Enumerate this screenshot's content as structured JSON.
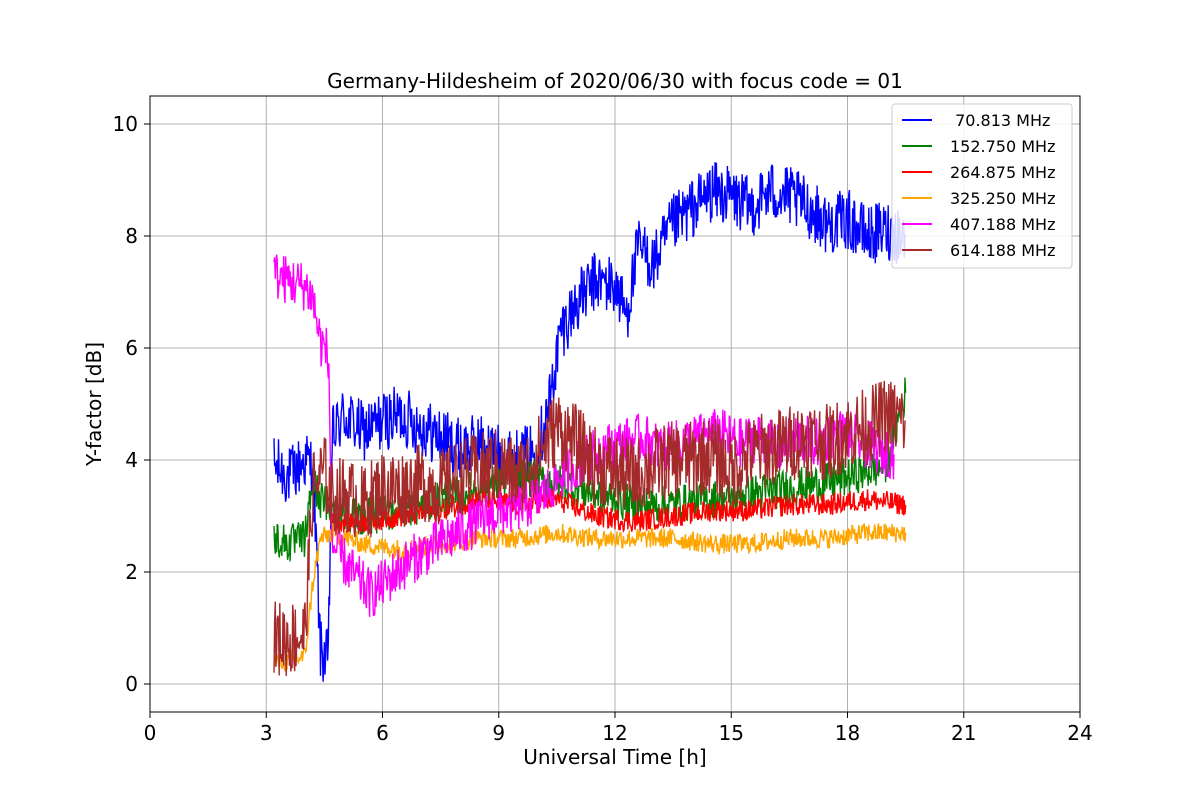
{
  "chart_data": {
    "type": "line",
    "title": "Germany-Hildesheim of 2020/06/30 with focus code = 01",
    "xlabel": "Universal Time [h]",
    "ylabel": "Y-factor [dB]",
    "xlim": [
      0,
      24
    ],
    "ylim": [
      -0.5,
      10.5
    ],
    "x_ticks": [
      "0",
      "3",
      "6",
      "9",
      "12",
      "15",
      "18",
      "21",
      "24"
    ],
    "y_ticks": [
      "0",
      "2",
      "4",
      "6",
      "8",
      "10"
    ],
    "grid": true,
    "legend_position": "top-right",
    "series": [
      {
        "name": " 70.813 MHz",
        "color": "#0000ff",
        "points": [
          [
            3.2,
            3.9
          ],
          [
            3.6,
            3.7
          ],
          [
            4.0,
            4.0
          ],
          [
            4.2,
            3.9
          ],
          [
            4.4,
            0.6
          ],
          [
            4.6,
            0.4
          ],
          [
            4.7,
            4.4
          ],
          [
            5.0,
            4.8
          ],
          [
            5.5,
            4.5
          ],
          [
            6.0,
            4.7
          ],
          [
            6.5,
            4.8
          ],
          [
            7.0,
            4.6
          ],
          [
            7.5,
            4.4
          ],
          [
            8.0,
            4.2
          ],
          [
            8.5,
            4.3
          ],
          [
            9.0,
            4.1
          ],
          [
            9.5,
            4.0
          ],
          [
            10.0,
            4.2
          ],
          [
            10.3,
            5.0
          ],
          [
            10.6,
            6.3
          ],
          [
            11.0,
            6.8
          ],
          [
            11.5,
            7.2
          ],
          [
            12.0,
            7.1
          ],
          [
            12.3,
            6.6
          ],
          [
            12.6,
            7.8
          ],
          [
            13.0,
            7.5
          ],
          [
            13.5,
            8.2
          ],
          [
            14.0,
            8.5
          ],
          [
            14.5,
            8.8
          ],
          [
            15.0,
            8.7
          ],
          [
            15.5,
            8.5
          ],
          [
            16.0,
            8.8
          ],
          [
            16.5,
            8.7
          ],
          [
            17.0,
            8.5
          ],
          [
            17.5,
            8.2
          ],
          [
            18.0,
            8.3
          ],
          [
            18.5,
            8.0
          ],
          [
            19.0,
            8.1
          ],
          [
            19.5,
            8.0
          ]
        ]
      },
      {
        "name": "152.750 MHz",
        "color": "#008000",
        "points": [
          [
            3.2,
            2.6
          ],
          [
            3.6,
            2.5
          ],
          [
            4.0,
            2.6
          ],
          [
            4.2,
            3.6
          ],
          [
            4.4,
            3.3
          ],
          [
            4.7,
            3.1
          ],
          [
            5.5,
            3.0
          ],
          [
            6.5,
            3.1
          ],
          [
            7.5,
            3.3
          ],
          [
            8.5,
            3.5
          ],
          [
            9.5,
            3.7
          ],
          [
            10.5,
            3.6
          ],
          [
            11.5,
            3.4
          ],
          [
            12.5,
            3.2
          ],
          [
            13.5,
            3.2
          ],
          [
            14.5,
            3.3
          ],
          [
            15.5,
            3.4
          ],
          [
            16.5,
            3.5
          ],
          [
            17.5,
            3.6
          ],
          [
            18.5,
            3.8
          ],
          [
            19.0,
            3.9
          ],
          [
            19.5,
            5.2
          ]
        ]
      },
      {
        "name": "264.875 MHz",
        "color": "#ff0000",
        "points": [
          [
            4.7,
            2.9
          ],
          [
            5.5,
            2.9
          ],
          [
            6.5,
            3.0
          ],
          [
            7.5,
            3.1
          ],
          [
            8.5,
            3.3
          ],
          [
            9.5,
            3.2
          ],
          [
            10.5,
            3.3
          ],
          [
            11.5,
            3.0
          ],
          [
            12.5,
            2.9
          ],
          [
            13.5,
            3.0
          ],
          [
            14.5,
            3.1
          ],
          [
            15.5,
            3.1
          ],
          [
            16.5,
            3.2
          ],
          [
            17.5,
            3.2
          ],
          [
            18.5,
            3.3
          ],
          [
            19.5,
            3.2
          ]
        ]
      },
      {
        "name": "325.250 MHz",
        "color": "#ffa500",
        "points": [
          [
            3.2,
            0.4
          ],
          [
            3.6,
            0.4
          ],
          [
            4.0,
            0.5
          ],
          [
            4.2,
            1.8
          ],
          [
            4.4,
            2.6
          ],
          [
            4.7,
            2.7
          ],
          [
            5.5,
            2.5
          ],
          [
            6.5,
            2.4
          ],
          [
            7.5,
            2.5
          ],
          [
            8.5,
            2.6
          ],
          [
            9.5,
            2.6
          ],
          [
            10.5,
            2.7
          ],
          [
            11.5,
            2.6
          ],
          [
            12.5,
            2.6
          ],
          [
            13.5,
            2.6
          ],
          [
            14.5,
            2.5
          ],
          [
            15.5,
            2.5
          ],
          [
            16.5,
            2.6
          ],
          [
            17.5,
            2.6
          ],
          [
            18.5,
            2.7
          ],
          [
            19.5,
            2.7
          ]
        ]
      },
      {
        "name": "407.188 MHz",
        "color": "#ff00ff",
        "points": [
          [
            3.2,
            7.3
          ],
          [
            3.6,
            7.2
          ],
          [
            4.0,
            7.1
          ],
          [
            4.2,
            6.9
          ],
          [
            4.4,
            6.1
          ],
          [
            4.6,
            5.9
          ],
          [
            4.7,
            2.5
          ],
          [
            5.2,
            2.0
          ],
          [
            5.7,
            1.6
          ],
          [
            6.2,
            1.9
          ],
          [
            6.7,
            2.2
          ],
          [
            7.2,
            2.4
          ],
          [
            7.7,
            2.6
          ],
          [
            8.2,
            2.8
          ],
          [
            8.7,
            3.0
          ],
          [
            9.2,
            3.1
          ],
          [
            9.7,
            3.2
          ],
          [
            10.2,
            3.4
          ],
          [
            10.7,
            3.8
          ],
          [
            11.2,
            4.0
          ],
          [
            11.7,
            4.2
          ],
          [
            12.2,
            4.3
          ],
          [
            12.7,
            4.4
          ],
          [
            13.2,
            4.2
          ],
          [
            13.7,
            4.3
          ],
          [
            14.2,
            4.4
          ],
          [
            14.7,
            4.5
          ],
          [
            15.2,
            4.3
          ],
          [
            15.7,
            4.4
          ],
          [
            16.2,
            4.2
          ],
          [
            16.7,
            4.4
          ],
          [
            17.2,
            4.3
          ],
          [
            17.7,
            4.5
          ],
          [
            18.2,
            4.4
          ],
          [
            18.7,
            4.2
          ],
          [
            19.2,
            4.1
          ]
        ]
      },
      {
        "name": "614.188 MHz",
        "color": "#a52a2a",
        "points": [
          [
            3.2,
            0.8
          ],
          [
            3.6,
            0.8
          ],
          [
            4.0,
            0.9
          ],
          [
            4.2,
            3.5
          ],
          [
            4.5,
            3.8
          ],
          [
            4.7,
            3.3
          ],
          [
            5.0,
            3.4
          ],
          [
            5.5,
            3.2
          ],
          [
            6.0,
            3.5
          ],
          [
            6.5,
            3.5
          ],
          [
            7.0,
            3.6
          ],
          [
            7.5,
            3.5
          ],
          [
            8.0,
            3.7
          ],
          [
            8.5,
            3.8
          ],
          [
            9.0,
            3.9
          ],
          [
            9.5,
            3.7
          ],
          [
            10.0,
            4.1
          ],
          [
            10.5,
            4.6
          ],
          [
            11.0,
            4.3
          ],
          [
            11.5,
            3.9
          ],
          [
            12.0,
            3.8
          ],
          [
            12.5,
            3.7
          ],
          [
            13.0,
            3.9
          ],
          [
            13.5,
            4.0
          ],
          [
            14.0,
            4.0
          ],
          [
            14.5,
            4.1
          ],
          [
            15.0,
            3.8
          ],
          [
            15.5,
            4.1
          ],
          [
            16.0,
            4.2
          ],
          [
            16.5,
            4.3
          ],
          [
            17.0,
            4.4
          ],
          [
            17.5,
            4.3
          ],
          [
            18.0,
            4.5
          ],
          [
            18.5,
            4.6
          ],
          [
            19.0,
            4.8
          ],
          [
            19.5,
            4.7
          ]
        ]
      }
    ]
  }
}
